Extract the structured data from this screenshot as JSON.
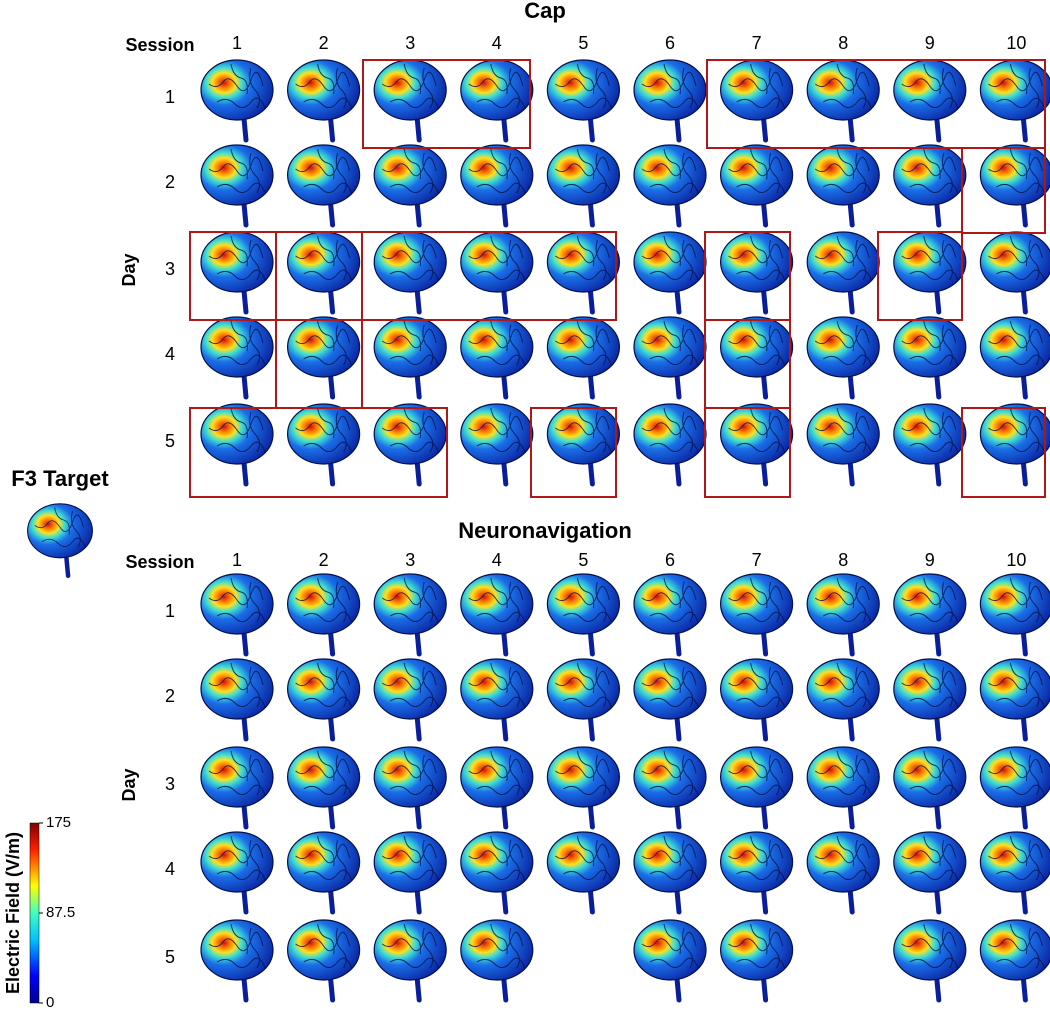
{
  "cap": {
    "title": "Cap",
    "session_label": "Session",
    "sessions": [
      "1",
      "2",
      "3",
      "4",
      "5",
      "6",
      "7",
      "8",
      "9",
      "10"
    ],
    "day_label": "Day",
    "days": [
      "1",
      "2",
      "3",
      "4",
      "5"
    ]
  },
  "neuronavigation": {
    "title": "Neuronavigation",
    "session_label": "Session",
    "sessions": [
      "1",
      "2",
      "3",
      "4",
      "5",
      "6",
      "7",
      "8",
      "9",
      "10"
    ],
    "day_label": "Day",
    "days": [
      "1",
      "2",
      "3",
      "4",
      "5"
    ]
  },
  "target": {
    "title": "F3 Target"
  },
  "colorbar": {
    "label": "Electric Field (V/m)",
    "lim": [
      0,
      175
    ],
    "ticks": [
      0,
      87.5,
      175
    ]
  }
}
